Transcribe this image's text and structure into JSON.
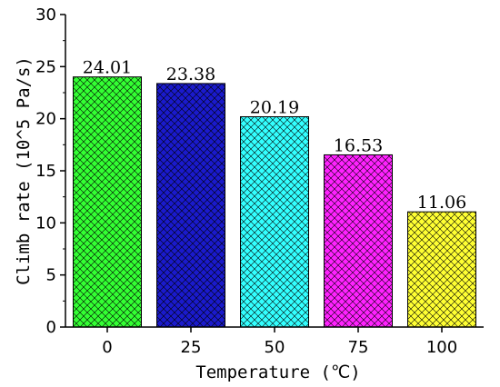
{
  "chart_data": {
    "type": "bar",
    "title": "",
    "xlabel": "Temperature (℃)",
    "ylabel": "Climb rate (10^5 Pa/s)",
    "categories": [
      "0",
      "25",
      "50",
      "75",
      "100"
    ],
    "values": [
      24.01,
      23.38,
      20.19,
      16.53,
      11.06
    ],
    "value_labels": [
      "24.01",
      "23.38",
      "20.19",
      "16.53",
      "11.06"
    ],
    "ylim": [
      0,
      30
    ],
    "yticks": [
      "0",
      "5",
      "10",
      "15",
      "20",
      "25",
      "30"
    ],
    "grid": false,
    "legend": "none",
    "bar_colors": [
      "#33ff33",
      "#1a1acc",
      "#33ffff",
      "#ff22ff",
      "#ffff33"
    ],
    "hatch": "crosshatch"
  }
}
